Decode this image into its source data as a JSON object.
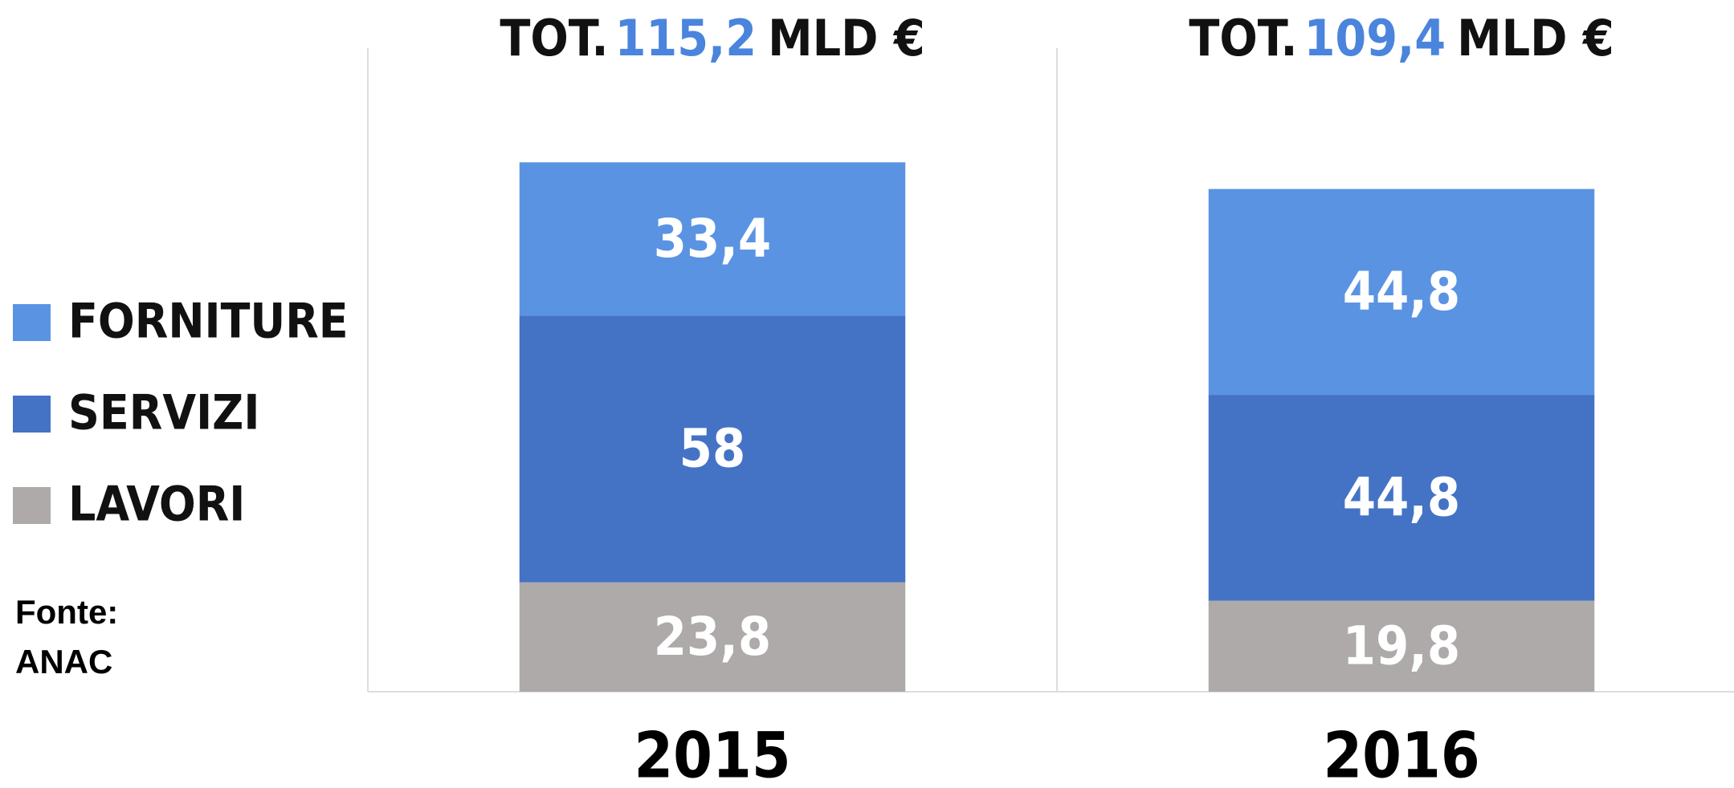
{
  "chart_data": {
    "type": "stacked_bar",
    "categories": [
      "2015",
      "2016"
    ],
    "series": [
      {
        "name": "LAVORI",
        "color": "#adaaa9",
        "values": [
          23.8,
          19.8
        ],
        "value_labels": [
          "23,8",
          "19,8"
        ]
      },
      {
        "name": "SERVIZI",
        "color": "#4473c5",
        "values": [
          58,
          44.8
        ],
        "value_labels": [
          "58",
          "44,8"
        ]
      },
      {
        "name": "FORNITURE",
        "color": "#5b93e3",
        "values": [
          33.4,
          44.8
        ],
        "value_labels": [
          "33,4",
          "44,8"
        ]
      }
    ],
    "total_prefix": "TOT.",
    "total_labels": [
      "115,2",
      "109,4"
    ],
    "total_suffix": "MLD €",
    "total_color": "#4a84dc",
    "ylim": [
      0,
      150
    ],
    "legend": "left",
    "source_label": "Fonte:",
    "source": "ANAC"
  }
}
